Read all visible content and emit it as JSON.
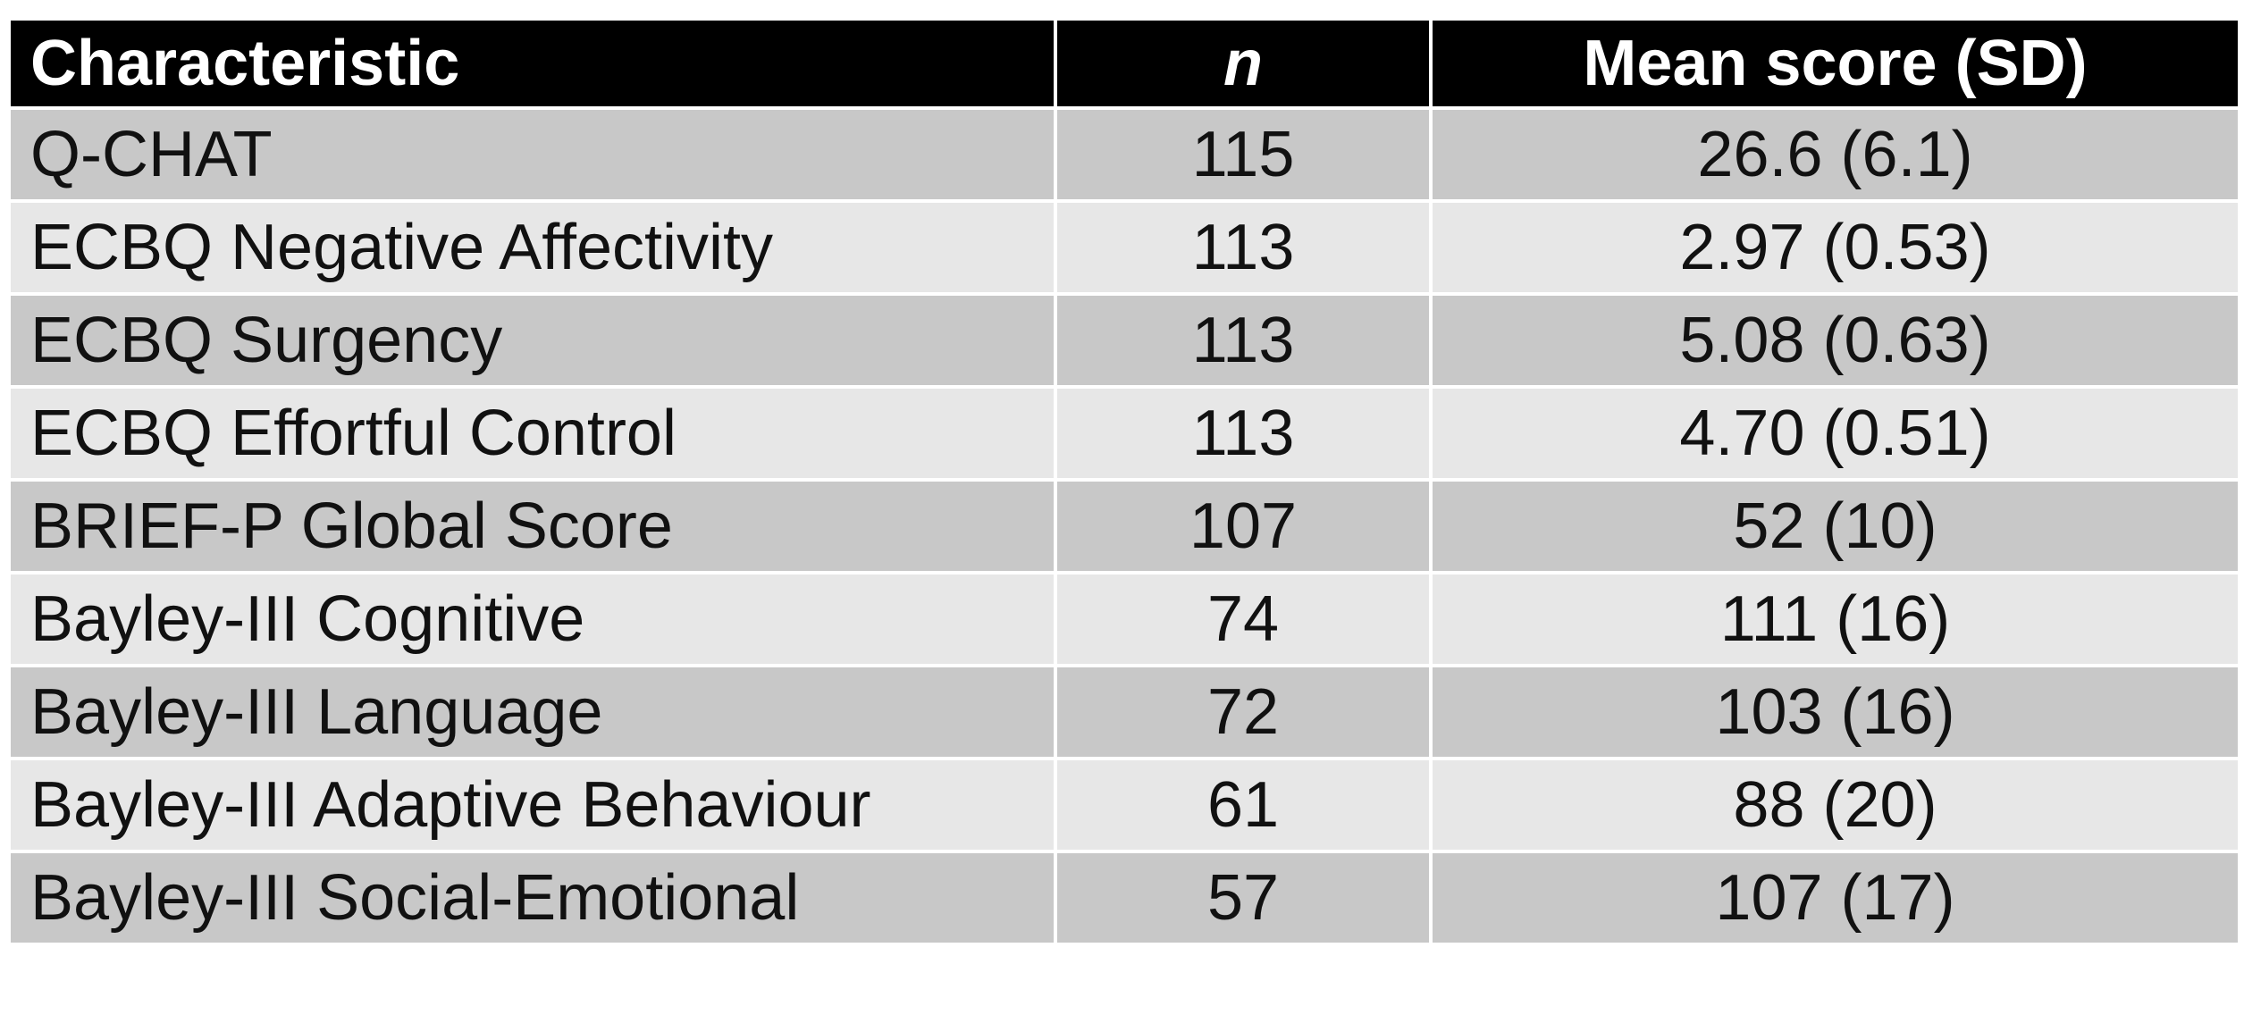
{
  "table": {
    "headers": {
      "characteristic": "Characteristic",
      "n": "n",
      "mean_score": "Mean score (SD)"
    },
    "rows": [
      {
        "characteristic": "Q-CHAT",
        "n": "115",
        "mean_score": "26.6 (6.1)"
      },
      {
        "characteristic": "ECBQ Negative Affectivity",
        "n": "113",
        "mean_score": "2.97 (0.53)"
      },
      {
        "characteristic": "ECBQ Surgency",
        "n": "113",
        "mean_score": "5.08 (0.63)"
      },
      {
        "characteristic": "ECBQ Effortful Control",
        "n": "113",
        "mean_score": "4.70 (0.51)"
      },
      {
        "characteristic": "BRIEF-P Global Score",
        "n": "107",
        "mean_score": "52 (10)"
      },
      {
        "characteristic": "Bayley-III Cognitive",
        "n": "74",
        "mean_score": "111 (16)"
      },
      {
        "characteristic": "Bayley-III Language",
        "n": "72",
        "mean_score": "103 (16)"
      },
      {
        "characteristic": "Bayley-III Adaptive Behaviour",
        "n": "61",
        "mean_score": "88 (20)"
      },
      {
        "characteristic": "Bayley-III Social-Emotional",
        "n": "57",
        "mean_score": "107 (17)"
      }
    ]
  },
  "colors": {
    "header_bg": "#000000",
    "header_text": "#ffffff",
    "row_dark": "#c8c8c8",
    "row_light": "#e7e7e7"
  }
}
